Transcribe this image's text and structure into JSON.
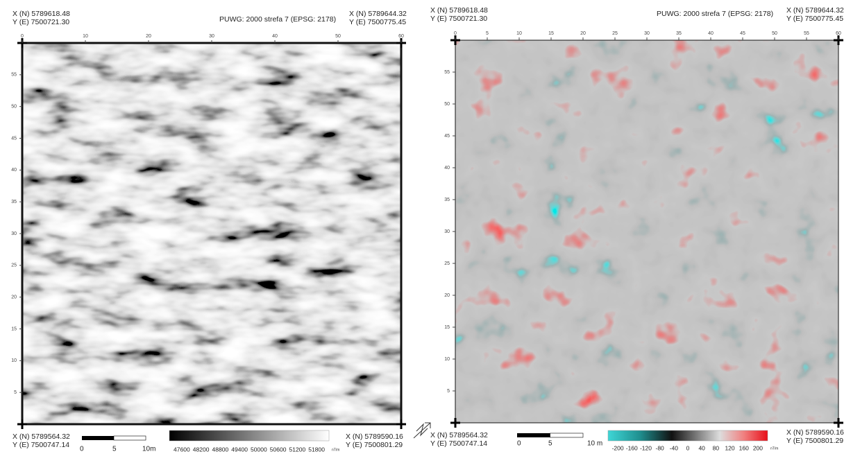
{
  "panels": [
    {
      "top_left": {
        "x": "X (N) 5789618.48",
        "y": "Y (E) 7500721.30"
      },
      "crs": "PUWG: 2000 strefa 7 (EPSG: 2178)",
      "top_right": {
        "x": "X (N) 5789644.32",
        "y": "Y (E) 7500775.45"
      },
      "bottom_left": {
        "x": "X (N) 5789564.32",
        "y": "Y (E) 7500747.14"
      },
      "bottom_right": {
        "x": "X (N) 5789590.16",
        "y": "Y (E) 7500801.29"
      },
      "x_ticks": [
        0,
        10,
        20,
        30,
        40,
        50,
        60
      ],
      "y_ticks": [
        55,
        50,
        45,
        40,
        35,
        30,
        25,
        20,
        15,
        10,
        5
      ],
      "scale_labels": [
        "0",
        "5",
        "10m"
      ],
      "colorbar": {
        "labels": [
          47600,
          48200,
          48800,
          49400,
          50000,
          50600,
          51200,
          51800
        ],
        "unit": "nT/m"
      }
    },
    {
      "top_left": {
        "x": "X (N) 5789618.48",
        "y": "Y (E) 7500721.30"
      },
      "crs": "PUWG: 2000 strefa 7 (EPSG: 2178)",
      "top_right": {
        "x": "X (N) 5789644.32",
        "y": "Y (E) 7500775.45"
      },
      "bottom_left": {
        "x": "X (N) 5789564.32",
        "y": "Y (E) 7500747.14"
      },
      "bottom_right": {
        "x": "X (N) 5789590.16",
        "y": "Y (E) 7500801.29"
      },
      "x_ticks": [
        0,
        5,
        10,
        15,
        20,
        25,
        30,
        35,
        40,
        45,
        50,
        55,
        60
      ],
      "y_ticks": [
        55,
        50,
        45,
        40,
        35,
        30,
        25,
        20,
        15,
        10,
        5
      ],
      "scale_labels": [
        "0",
        "5",
        "10 m"
      ],
      "colorbar": {
        "labels": [
          -200,
          -160,
          -120,
          -80,
          -40,
          0,
          40,
          80,
          120,
          160,
          200
        ],
        "unit": "nT/m"
      }
    }
  ]
}
